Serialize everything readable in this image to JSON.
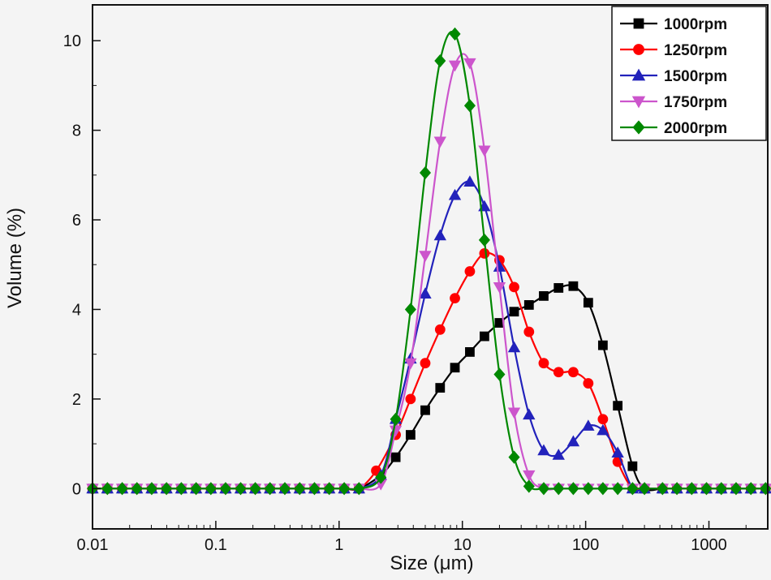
{
  "chart_data": {
    "type": "line",
    "xscale": "log",
    "xlabel": "Size (μm)",
    "ylabel": "Volume (%)",
    "xlim": [
      0.01,
      3000
    ],
    "ylim": [
      -0.9,
      10.8
    ],
    "xticks": [
      0.01,
      0.1,
      1,
      10,
      100,
      1000
    ],
    "xtick_labels": [
      "0.01",
      "0.1",
      "1",
      "10",
      "100",
      "1000"
    ],
    "yticks": [
      0,
      2,
      4,
      6,
      8,
      10
    ],
    "ytick_labels": [
      "0",
      "2",
      "4",
      "6",
      "8",
      "10"
    ],
    "legend_position": "top-right",
    "series": [
      {
        "name": "1000rpm",
        "color": "#000000",
        "marker": "square",
        "points": [
          [
            0.01,
            0
          ],
          [
            0.0132,
            0
          ],
          [
            0.0174,
            0
          ],
          [
            0.0229,
            0
          ],
          [
            0.0302,
            0
          ],
          [
            0.0398,
            0
          ],
          [
            0.0525,
            0
          ],
          [
            0.0692,
            0
          ],
          [
            0.0912,
            0
          ],
          [
            0.12,
            0
          ],
          [
            0.159,
            0
          ],
          [
            0.209,
            0
          ],
          [
            0.275,
            0
          ],
          [
            0.363,
            0
          ],
          [
            0.479,
            0
          ],
          [
            0.631,
            0
          ],
          [
            0.832,
            0
          ],
          [
            1.1,
            0
          ],
          [
            1.45,
            0
          ],
          [
            2.18,
            0.3
          ],
          [
            2.88,
            0.7
          ],
          [
            3.8,
            1.2
          ],
          [
            5.0,
            1.75
          ],
          [
            6.6,
            2.25
          ],
          [
            8.7,
            2.7
          ],
          [
            11.5,
            3.05
          ],
          [
            15.1,
            3.4
          ],
          [
            20,
            3.7
          ],
          [
            26.3,
            3.95
          ],
          [
            34.7,
            4.1
          ],
          [
            45.7,
            4.3
          ],
          [
            60.3,
            4.48
          ],
          [
            79.4,
            4.52
          ],
          [
            105,
            4.15
          ],
          [
            138,
            3.2
          ],
          [
            182,
            1.85
          ],
          [
            240,
            0.5
          ],
          [
            300,
            0
          ],
          [
            420,
            0
          ],
          [
            550,
            0
          ],
          [
            725,
            0
          ],
          [
            955,
            0
          ],
          [
            1260,
            0
          ],
          [
            1660,
            0
          ],
          [
            2190,
            0
          ],
          [
            2880,
            0
          ]
        ]
      },
      {
        "name": "1250rpm",
        "color": "#ff0000",
        "marker": "circle",
        "points": [
          [
            0.01,
            0
          ],
          [
            0.0132,
            0
          ],
          [
            0.0174,
            0
          ],
          [
            0.0229,
            0
          ],
          [
            0.0302,
            0
          ],
          [
            0.0398,
            0
          ],
          [
            0.0525,
            0
          ],
          [
            0.0692,
            0
          ],
          [
            0.0912,
            0
          ],
          [
            0.12,
            0
          ],
          [
            0.159,
            0
          ],
          [
            0.209,
            0
          ],
          [
            0.275,
            0
          ],
          [
            0.363,
            0
          ],
          [
            0.479,
            0
          ],
          [
            0.631,
            0
          ],
          [
            0.832,
            0
          ],
          [
            1.1,
            0
          ],
          [
            1.45,
            0
          ],
          [
            2.0,
            0.4
          ],
          [
            2.88,
            1.2
          ],
          [
            3.8,
            2.0
          ],
          [
            5.0,
            2.8
          ],
          [
            6.6,
            3.55
          ],
          [
            8.7,
            4.25
          ],
          [
            11.5,
            4.85
          ],
          [
            15.1,
            5.25
          ],
          [
            20,
            5.1
          ],
          [
            26.3,
            4.5
          ],
          [
            34.7,
            3.5
          ],
          [
            45.7,
            2.8
          ],
          [
            60.3,
            2.6
          ],
          [
            79.4,
            2.6
          ],
          [
            105,
            2.35
          ],
          [
            138,
            1.55
          ],
          [
            182,
            0.6
          ],
          [
            240,
            0
          ],
          [
            300,
            0
          ],
          [
            420,
            0
          ],
          [
            550,
            0
          ],
          [
            725,
            0
          ],
          [
            955,
            0
          ],
          [
            1260,
            0
          ],
          [
            1660,
            0
          ],
          [
            2190,
            0
          ],
          [
            2880,
            0
          ]
        ]
      },
      {
        "name": "1500rpm",
        "color": "#2222bb",
        "marker": "triangle-up",
        "points": [
          [
            0.01,
            0
          ],
          [
            0.0132,
            0
          ],
          [
            0.0174,
            0
          ],
          [
            0.0229,
            0
          ],
          [
            0.0302,
            0
          ],
          [
            0.0398,
            0
          ],
          [
            0.0525,
            0
          ],
          [
            0.0692,
            0
          ],
          [
            0.0912,
            0
          ],
          [
            0.12,
            0
          ],
          [
            0.159,
            0
          ],
          [
            0.209,
            0
          ],
          [
            0.275,
            0
          ],
          [
            0.363,
            0
          ],
          [
            0.479,
            0
          ],
          [
            0.631,
            0
          ],
          [
            0.832,
            0
          ],
          [
            1.1,
            0
          ],
          [
            1.45,
            0
          ],
          [
            2.18,
            0.3
          ],
          [
            2.88,
            1.55
          ],
          [
            3.8,
            2.9
          ],
          [
            5.0,
            4.35
          ],
          [
            6.6,
            5.65
          ],
          [
            8.7,
            6.55
          ],
          [
            11.5,
            6.85
          ],
          [
            15.1,
            6.3
          ],
          [
            20,
            4.95
          ],
          [
            26.3,
            3.15
          ],
          [
            34.7,
            1.65
          ],
          [
            45.7,
            0.85
          ],
          [
            60.3,
            0.75
          ],
          [
            79.4,
            1.05
          ],
          [
            105,
            1.4
          ],
          [
            138,
            1.3
          ],
          [
            182,
            0.8
          ],
          [
            240,
            0
          ],
          [
            300,
            0
          ],
          [
            420,
            0
          ],
          [
            550,
            0
          ],
          [
            725,
            0
          ],
          [
            955,
            0
          ],
          [
            1260,
            0
          ],
          [
            1660,
            0
          ],
          [
            2190,
            0
          ],
          [
            2880,
            0
          ]
        ]
      },
      {
        "name": "1750rpm",
        "color": "#cc55cc",
        "marker": "triangle-down",
        "points": [
          [
            0.01,
            0
          ],
          [
            0.0132,
            0
          ],
          [
            0.0174,
            0
          ],
          [
            0.0229,
            0
          ],
          [
            0.0302,
            0
          ],
          [
            0.0398,
            0
          ],
          [
            0.0525,
            0
          ],
          [
            0.0692,
            0
          ],
          [
            0.0912,
            0
          ],
          [
            0.12,
            0
          ],
          [
            0.159,
            0
          ],
          [
            0.209,
            0
          ],
          [
            0.275,
            0
          ],
          [
            0.363,
            0
          ],
          [
            0.479,
            0
          ],
          [
            0.631,
            0
          ],
          [
            0.832,
            0
          ],
          [
            1.1,
            0
          ],
          [
            1.45,
            0
          ],
          [
            2.18,
            0.1
          ],
          [
            2.88,
            1.3
          ],
          [
            3.8,
            2.8
          ],
          [
            5.0,
            5.2
          ],
          [
            6.6,
            7.75
          ],
          [
            8.7,
            9.45
          ],
          [
            11.5,
            9.5
          ],
          [
            15.1,
            7.55
          ],
          [
            20,
            4.5
          ],
          [
            26.3,
            1.7
          ],
          [
            34.7,
            0.3
          ],
          [
            45.7,
            0
          ],
          [
            60.3,
            0
          ],
          [
            79.4,
            0
          ],
          [
            105,
            0
          ],
          [
            138,
            0
          ],
          [
            182,
            0
          ],
          [
            240,
            0
          ],
          [
            300,
            0
          ],
          [
            420,
            0
          ],
          [
            550,
            0
          ],
          [
            725,
            0
          ],
          [
            955,
            0
          ],
          [
            1260,
            0
          ],
          [
            1660,
            0
          ],
          [
            2190,
            0
          ],
          [
            2880,
            0
          ]
        ]
      },
      {
        "name": "2000rpm",
        "color": "#008800",
        "marker": "diamond",
        "points": [
          [
            0.01,
            0
          ],
          [
            0.0132,
            0
          ],
          [
            0.0174,
            0
          ],
          [
            0.0229,
            0
          ],
          [
            0.0302,
            0
          ],
          [
            0.0398,
            0
          ],
          [
            0.0525,
            0
          ],
          [
            0.0692,
            0
          ],
          [
            0.0912,
            0
          ],
          [
            0.12,
            0
          ],
          [
            0.159,
            0
          ],
          [
            0.209,
            0
          ],
          [
            0.275,
            0
          ],
          [
            0.363,
            0
          ],
          [
            0.479,
            0
          ],
          [
            0.631,
            0
          ],
          [
            0.832,
            0
          ],
          [
            1.1,
            0
          ],
          [
            1.45,
            0
          ],
          [
            2.18,
            0.25
          ],
          [
            2.88,
            1.55
          ],
          [
            3.8,
            4.0
          ],
          [
            5.0,
            7.05
          ],
          [
            6.6,
            9.55
          ],
          [
            8.7,
            10.15
          ],
          [
            11.5,
            8.55
          ],
          [
            15.1,
            5.55
          ],
          [
            20,
            2.55
          ],
          [
            26.3,
            0.7
          ],
          [
            34.7,
            0.05
          ],
          [
            45.7,
            0
          ],
          [
            60.3,
            0
          ],
          [
            79.4,
            0
          ],
          [
            105,
            0
          ],
          [
            138,
            0
          ],
          [
            182,
            0
          ],
          [
            240,
            0
          ],
          [
            300,
            0
          ],
          [
            420,
            0
          ],
          [
            550,
            0
          ],
          [
            725,
            0
          ],
          [
            955,
            0
          ],
          [
            1260,
            0
          ],
          [
            1660,
            0
          ],
          [
            2190,
            0
          ],
          [
            2880,
            0
          ]
        ]
      }
    ]
  }
}
